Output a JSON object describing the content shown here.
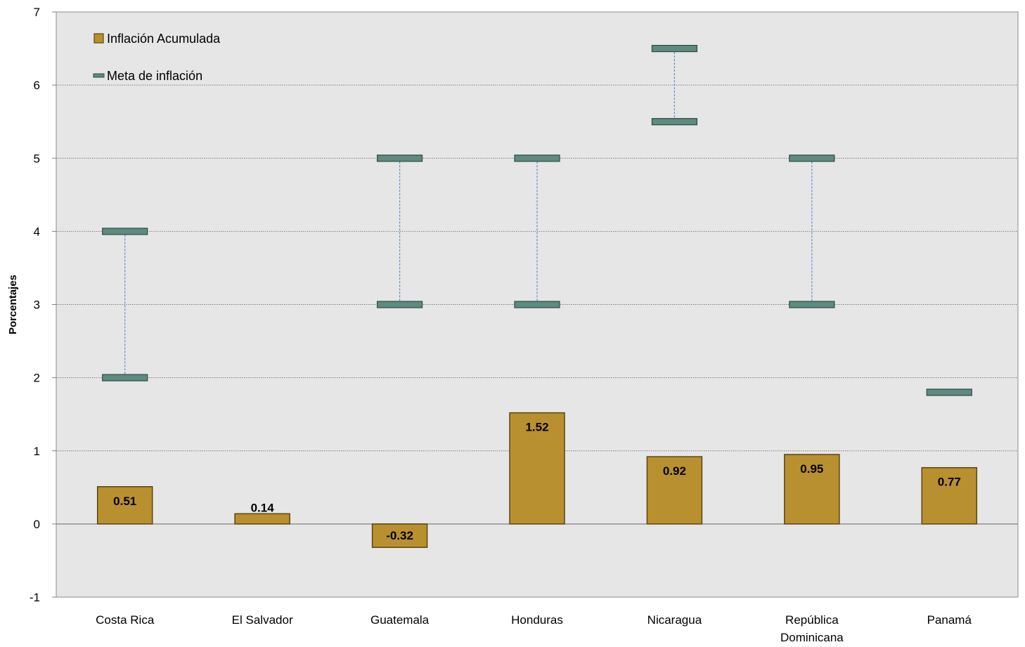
{
  "chart_data": {
    "type": "bar",
    "ylabel": "Porcentajes",
    "ylim": [
      -1,
      7
    ],
    "yticks": [
      -1,
      0,
      1,
      2,
      3,
      4,
      5,
      6,
      7
    ],
    "grid": true,
    "legend_position": "top-left",
    "categories": [
      [
        "Costa Rica"
      ],
      [
        "El Salvador"
      ],
      [
        "Guatemala"
      ],
      [
        "Honduras"
      ],
      [
        "Nicaragua"
      ],
      [
        "República",
        "Dominicana"
      ],
      [
        "Panamá"
      ]
    ],
    "series": [
      {
        "name": "Inflación Acumulada",
        "kind": "bar",
        "color": "#B8902F",
        "values": [
          0.51,
          0.14,
          -0.32,
          1.52,
          0.92,
          0.95,
          0.77
        ],
        "labels": [
          "0.51",
          "0.14",
          "-0.32",
          "1.52",
          "0.92",
          "0.95",
          "0.77"
        ]
      },
      {
        "name": "Meta de inflación",
        "kind": "range",
        "color": "#5E8A80",
        "low": [
          2,
          null,
          3,
          3,
          5.5,
          3,
          1.8
        ],
        "high": [
          4,
          null,
          5,
          5,
          6.5,
          5,
          null
        ]
      }
    ],
    "colors": {
      "plot_background": "#E6E6E6",
      "bar_border": "#5A4510",
      "target_border": "#2E4A44",
      "connector": "#5B8FD0",
      "grid": "#7F7F7F"
    }
  }
}
